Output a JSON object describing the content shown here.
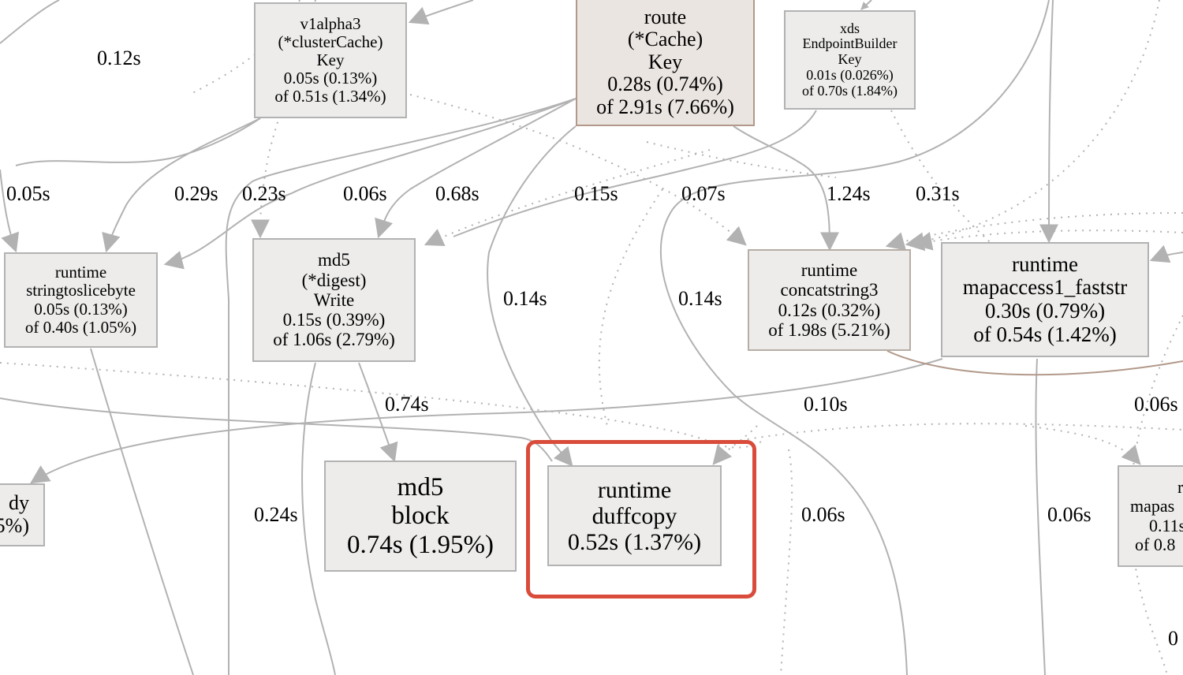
{
  "nodes": {
    "clustercache_key": {
      "l1": "v1alpha3",
      "l2": "(*clusterCache)",
      "l3": "Key",
      "l4": "0.05s (0.13%)",
      "l5": "of 0.51s (1.34%)"
    },
    "route_key": {
      "l1": "route",
      "l2": "(*Cache)",
      "l3": "Key",
      "l4": "0.28s (0.74%)",
      "l5": "of 2.91s (7.66%)"
    },
    "xds_endpoint_key": {
      "l1": "xds",
      "l2": "EndpointBuilder",
      "l3": "Key",
      "l4": "0.01s (0.026%)",
      "l5": "of 0.70s (1.84%)"
    },
    "stringtoslicebyte": {
      "l1": "runtime",
      "l2": "stringtoslicebyte",
      "l3": "0.05s (0.13%)",
      "l4": "of 0.40s (1.05%)"
    },
    "md5_write": {
      "l1": "md5",
      "l2": "(*digest)",
      "l3": "Write",
      "l4": "0.15s (0.39%)",
      "l5": "of 1.06s (2.79%)"
    },
    "concatstring3": {
      "l1": "runtime",
      "l2": "concatstring3",
      "l3": "0.12s (0.32%)",
      "l4": "of 1.98s (5.21%)"
    },
    "mapaccess1_faststr": {
      "l1": "runtime",
      "l2": "mapaccess1_faststr",
      "l3": "0.30s (0.79%)",
      "l4": "of 0.54s (1.42%)"
    },
    "md5_block": {
      "l1": "md5",
      "l2": "block",
      "l3": "0.74s (1.95%)"
    },
    "duffcopy": {
      "l1": "runtime",
      "l2": "duffcopy",
      "l3": "0.52s (1.37%)"
    },
    "partial_left": {
      "l1": "dy",
      "l2": "5%)"
    },
    "partial_right": {
      "l1": "ru",
      "l2": "mapas",
      "l3": "0.11s",
      "l4": "of 0.8"
    }
  },
  "edge_labels": {
    "e_012s": "0.12s",
    "e_005s": "0.05s",
    "e_029s": "0.29s",
    "e_023s": "0.23s",
    "e_006s_a": "0.06s",
    "e_068s": "0.68s",
    "e_015s": "0.15s",
    "e_007s": "0.07s",
    "e_124s": "1.24s",
    "e_031s": "0.31s",
    "e_014s_a": "0.14s",
    "e_014s_b": "0.14s",
    "e_074s": "0.74s",
    "e_010s": "0.10s",
    "e_006s_b": "0.06s",
    "e_024s": "0.24s",
    "e_006s_c": "0.06s",
    "e_006s_d": "0.06s",
    "e_0_partial": "0"
  },
  "colors": {
    "node_fill": "#edeceb",
    "node_border": "#b2b2b2",
    "edge": "#b2b2b2",
    "hot_edge": "#b2998a",
    "highlight": "#d94c3b"
  }
}
